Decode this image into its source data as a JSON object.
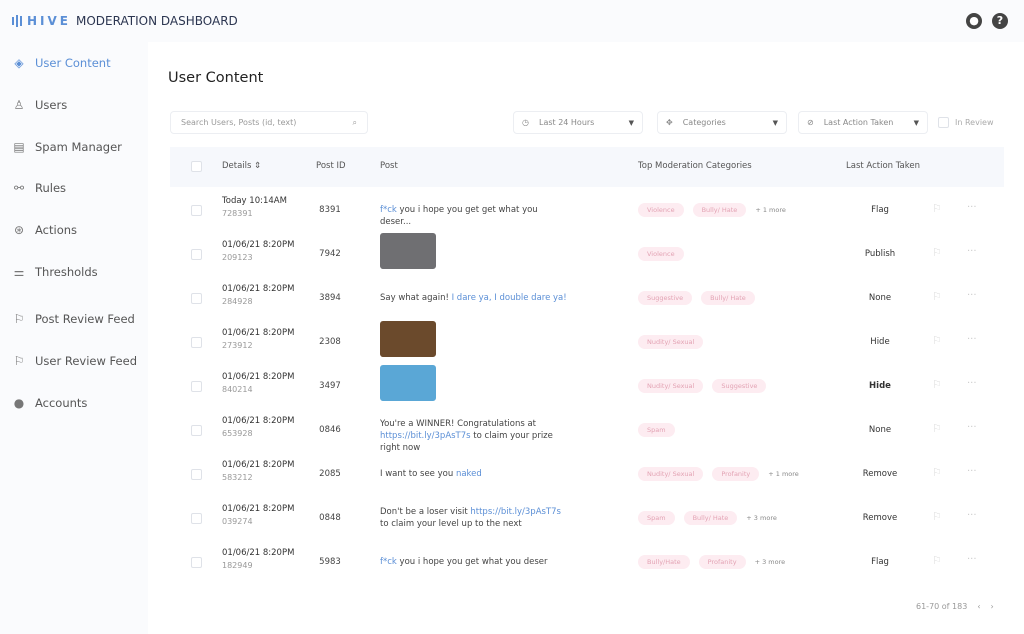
{
  "app": {
    "brand": "HIVE",
    "title": "MODERATION DASHBOARD",
    "icons": [
      "user-icon",
      "help-icon"
    ]
  },
  "sidebar": {
    "items": [
      {
        "label": "User Content",
        "icon": "diamond-target-icon",
        "active": true
      },
      {
        "label": "Users",
        "icon": "user-icon"
      },
      {
        "label": "Spam Manager",
        "icon": "spam-manager-icon"
      },
      {
        "label": "Rules",
        "icon": "rules-icon"
      },
      {
        "label": "Actions",
        "icon": "actions-icon"
      },
      {
        "label": "Thresholds",
        "icon": "sliders-icon"
      },
      {
        "label": "Post Review Feed",
        "icon": "flag-icon"
      },
      {
        "label": "User Review Feed",
        "icon": "flag-icon"
      },
      {
        "label": "Accounts",
        "icon": "account-icon"
      }
    ]
  },
  "page": {
    "title": "User Content"
  },
  "filters": {
    "search_placeholder": "Search Users, Posts (id, text)",
    "time": "Last 24 Hours",
    "categories": "Categories",
    "last_action": "Last Action Taken",
    "in_review": "In Review"
  },
  "table": {
    "headers": {
      "details": "Details",
      "post_id": "Post ID",
      "post": "Post",
      "categories": "Top Moderation Categories",
      "action": "Last Action Taken"
    },
    "rows": [
      {
        "date": "Today 10:14AM",
        "user_id": "728391",
        "post_id": "8391",
        "post": [
          {
            "t": "f*ck",
            "link": true
          },
          {
            "t": " you i hope you get get what you deser..."
          }
        ],
        "tags": [
          "Violence",
          "Bully/ Hate"
        ],
        "more": "+ 1 more",
        "action": "Flag"
      },
      {
        "date": "01/06/21 8:20PM",
        "user_id": "209123",
        "post_id": "7942",
        "image": "#6f6f72",
        "tags": [
          "Violence"
        ],
        "more": "",
        "action": "Publish"
      },
      {
        "date": "01/06/21 8:20PM",
        "user_id": "284928",
        "post_id": "3894",
        "post": [
          {
            "t": "Say what again! "
          },
          {
            "t": "I dare ya, I double dare ya!",
            "link": true
          }
        ],
        "tags": [
          "Suggestive",
          "Bully/ Hate"
        ],
        "more": "",
        "action": "None"
      },
      {
        "date": "01/06/21 8:20PM",
        "user_id": "273912",
        "post_id": "2308",
        "image": "#6b4a2c",
        "tags": [
          "Nudity/ Sexual"
        ],
        "more": "",
        "action": "Hide"
      },
      {
        "date": "01/06/21 8:20PM",
        "user_id": "840214",
        "post_id": "3497",
        "image": "#5aa7d6",
        "tags": [
          "Nudity/ Sexual",
          "Suggestive"
        ],
        "more": "",
        "action": "Hide",
        "bold": true
      },
      {
        "date": "01/06/21 8:20PM",
        "user_id": "653928",
        "post_id": "0846",
        "post": [
          {
            "t": "You're a WINNER! Congratulations at "
          },
          {
            "t": "https://bit.ly/3pAsT7s",
            "link": true
          },
          {
            "t": " to claim your prize right now"
          }
        ],
        "tags": [
          "Spam"
        ],
        "more": "",
        "action": "None"
      },
      {
        "date": "01/06/21 8:20PM",
        "user_id": "583212",
        "post_id": "2085",
        "post": [
          {
            "t": "I want to see you "
          },
          {
            "t": "naked",
            "link": true
          }
        ],
        "tags": [
          "Nudity/ Sexual",
          "Profanity"
        ],
        "more": "+ 1 more",
        "action": "Remove"
      },
      {
        "date": "01/06/21 8:20PM",
        "user_id": "039274",
        "post_id": "0848",
        "post": [
          {
            "t": "Don't be a loser visit "
          },
          {
            "t": "https://bit.ly/3pAsT7s",
            "link": true
          },
          {
            "t": " to claim your level up to the next"
          }
        ],
        "tags": [
          "Spam",
          "Bully/ Hate"
        ],
        "more": "+ 3 more",
        "action": "Remove"
      },
      {
        "date": "01/06/21 8:20PM",
        "user_id": "182949",
        "post_id": "5983",
        "post": [
          {
            "t": "f*ck",
            "link": true
          },
          {
            "t": " you i hope you get what you deser"
          }
        ],
        "tags": [
          "Bully/Hate",
          "Profanity"
        ],
        "more": "+ 3 more",
        "action": "Flag"
      }
    ]
  },
  "pagination": {
    "range": "61-70 of 183"
  },
  "colors": {
    "accent": "#5b8fd6",
    "tag_bg": "#fdecf1",
    "tag_text": "#e3a3b4"
  }
}
